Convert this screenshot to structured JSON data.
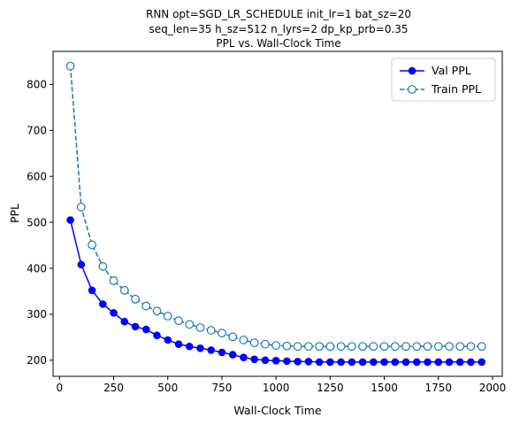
{
  "chart_data": {
    "type": "line",
    "title_lines": [
      "RNN opt=SGD_LR_SCHEDULE init_lr=1 bat_sz=20",
      "seq_len=35 h_sz=512 n_lyrs=2 dp_kp_prb=0.35",
      "PPL vs. Wall-Clock Time"
    ],
    "xlabel": "Wall-Clock Time",
    "ylabel": "PPL",
    "xlim": [
      -30,
      2045
    ],
    "ylim": [
      165,
      872
    ],
    "xticks": [
      0,
      250,
      500,
      750,
      1000,
      1250,
      1500,
      1750,
      2000
    ],
    "yticks": [
      200,
      300,
      400,
      500,
      600,
      700,
      800
    ],
    "grid": false,
    "legend_position": "upper right",
    "series": [
      {
        "name": "Val PPL",
        "color": "#0000ff",
        "marker": "filled-circle",
        "linestyle": "solid",
        "x": [
          50,
          100,
          150,
          200,
          250,
          300,
          350,
          400,
          450,
          500,
          550,
          600,
          650,
          700,
          750,
          800,
          850,
          900,
          950,
          1000,
          1050,
          1100,
          1150,
          1200,
          1250,
          1300,
          1350,
          1400,
          1450,
          1500,
          1550,
          1600,
          1650,
          1700,
          1750,
          1800,
          1850,
          1900,
          1950
        ],
        "y": [
          505,
          408,
          352,
          322,
          303,
          284,
          273,
          267,
          254,
          244,
          235,
          230,
          226,
          222,
          217,
          212,
          206,
          202,
          200,
          199,
          198,
          197,
          197,
          196,
          196,
          196,
          196,
          196,
          196,
          196,
          196,
          196,
          196,
          196,
          196,
          196,
          196,
          196,
          196
        ]
      },
      {
        "name": "Train PPL",
        "color": "#1f77b4",
        "marker": "open-circle",
        "linestyle": "dashed",
        "x": [
          50,
          100,
          150,
          200,
          250,
          300,
          350,
          400,
          450,
          500,
          550,
          600,
          650,
          700,
          750,
          800,
          850,
          900,
          950,
          1000,
          1050,
          1100,
          1150,
          1200,
          1250,
          1300,
          1350,
          1400,
          1450,
          1500,
          1550,
          1600,
          1650,
          1700,
          1750,
          1800,
          1850,
          1900,
          1950
        ],
        "y": [
          840,
          533,
          451,
          404,
          373,
          352,
          333,
          318,
          307,
          296,
          286,
          278,
          271,
          265,
          259,
          251,
          244,
          238,
          235,
          232,
          231,
          230,
          230,
          230,
          230,
          230,
          230,
          230,
          230,
          230,
          230,
          230,
          230,
          230,
          230,
          230,
          230,
          230,
          230
        ]
      }
    ]
  }
}
